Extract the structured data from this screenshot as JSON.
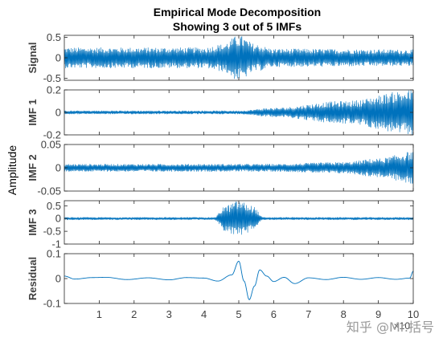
{
  "chart_data": {
    "type": "line",
    "title": "Empirical Mode Decomposition",
    "subtitle": "Showing 3 out of 5 IMFs",
    "shared_ylabel": "Amplitude",
    "x_ticks": [
      "1",
      "2",
      "3",
      "4",
      "5",
      "6",
      "7",
      "8",
      "9",
      "10"
    ],
    "x_exponent": "×10",
    "xlim": [
      0,
      10
    ],
    "line_color": "#0072BD",
    "grid": false,
    "panels": [
      {
        "name": "Signal",
        "ylim": [
          -0.55,
          0.55
        ],
        "yticks": [
          0.5,
          0,
          -0.5
        ],
        "ytick_labels": [
          "0.5",
          "0",
          "-0.5"
        ],
        "envelope": {
          "x": [
            0,
            4,
            4.5,
            5,
            5.5,
            6,
            10
          ],
          "amp": [
            0.25,
            0.25,
            0.33,
            0.55,
            0.33,
            0.22,
            0.2
          ]
        }
      },
      {
        "name": "IMF 1",
        "ylim": [
          -0.2,
          0.2
        ],
        "yticks": [
          0.2,
          0,
          -0.2
        ],
        "ytick_labels": [
          "0.2",
          "0",
          "-0.2"
        ],
        "envelope": {
          "x": [
            0,
            5,
            6,
            8,
            10
          ],
          "amp": [
            0.015,
            0.015,
            0.04,
            0.1,
            0.2
          ]
        }
      },
      {
        "name": "IMF 2",
        "ylim": [
          -0.05,
          0.05
        ],
        "yticks": [
          0.05,
          0,
          -0.05
        ],
        "ytick_labels": [
          "0.05",
          "0",
          "-0.05"
        ],
        "envelope": {
          "x": [
            0,
            6,
            8,
            9,
            10
          ],
          "amp": [
            0.008,
            0.008,
            0.012,
            0.02,
            0.035
          ]
        }
      },
      {
        "name": "IMF 3",
        "ylim": [
          -1,
          0.7
        ],
        "yticks": [
          0.5,
          0,
          -0.5,
          -1
        ],
        "ytick_labels": [
          "0.5",
          "0",
          "-0.5",
          "-1"
        ],
        "envelope": {
          "x": [
            0,
            4.3,
            4.6,
            5,
            5.4,
            5.7,
            10
          ],
          "amp": [
            0.05,
            0.05,
            0.5,
            0.7,
            0.5,
            0.05,
            0.05
          ]
        }
      },
      {
        "name": "Residual",
        "ylim": [
          -0.1,
          0.1
        ],
        "yticks": [
          0.1,
          0,
          -0.1
        ],
        "ytick_labels": [
          "0.1",
          "0",
          "-0.1"
        ],
        "curve": {
          "x": [
            0,
            0.3,
            0.8,
            1.2,
            1.8,
            2.4,
            3,
            3.5,
            4,
            4.4,
            4.8,
            5,
            5.15,
            5.3,
            5.45,
            5.6,
            5.8,
            6,
            6.3,
            6.6,
            7,
            7.5,
            8,
            8.5,
            9,
            9.5,
            9.9,
            10
          ],
          "y": [
            0.01,
            -0.002,
            0.004,
            0.005,
            -0.004,
            0.003,
            -0.005,
            0.004,
            0.002,
            -0.01,
            0.015,
            0.07,
            -0.01,
            -0.085,
            -0.03,
            0.035,
            0.01,
            -0.012,
            0.005,
            -0.02,
            0.003,
            -0.004,
            0.005,
            -0.003,
            0.004,
            -0.003,
            0.002,
            0.03
          ]
        }
      }
    ]
  },
  "watermark": "知乎 @Mr.括号"
}
